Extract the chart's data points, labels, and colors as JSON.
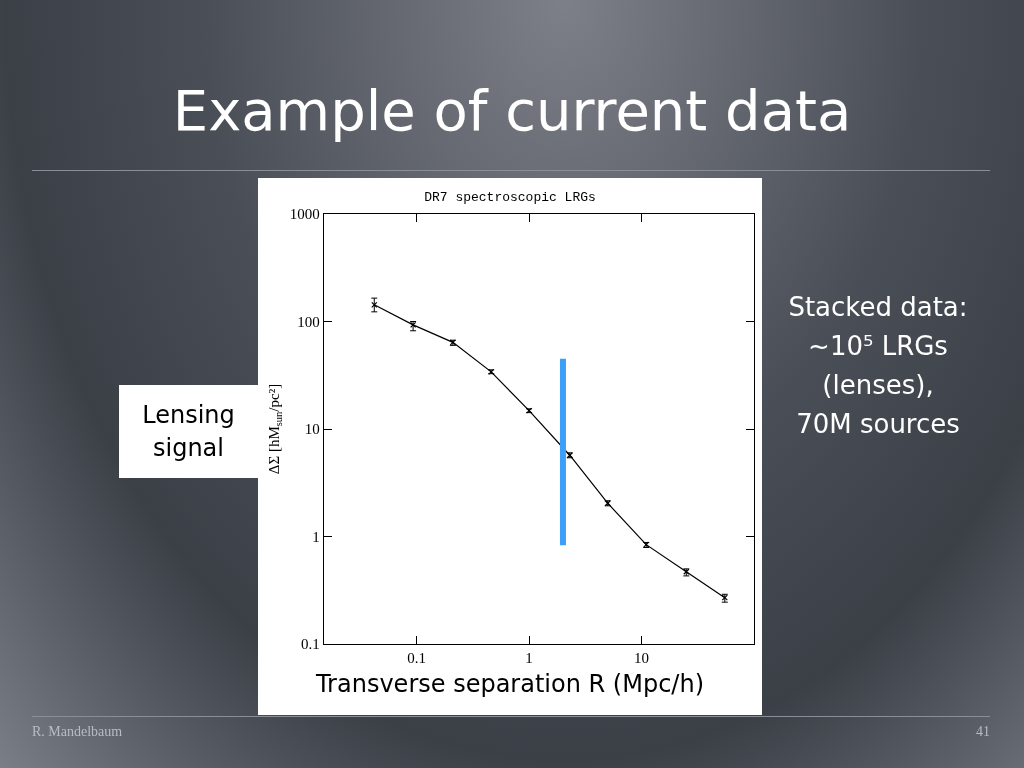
{
  "chart_data": {
    "type": "line",
    "title": "Example of current data",
    "subtitle": "DR7 spectroscopic LRGs",
    "xlabel": "Transverse separation R (Mpc/h)",
    "ylabel": "ΔΣ [hM$_{sun}$/pc²]",
    "x": [
      0.042,
      0.093,
      0.21,
      0.46,
      1.0,
      2.3,
      5.0,
      11,
      25,
      55
    ],
    "series": [
      {
        "color": "#000000",
        "values": [
          143,
          93,
          64,
          34,
          14.8,
          5.7,
          2.04,
          0.84,
          0.47,
          0.27
        ],
        "errors": [
          [
            123,
            165
          ],
          [
            82,
            100
          ],
          [
            60,
            67
          ],
          [
            32.7,
            35.5
          ],
          [
            14.2,
            15.4
          ],
          [
            5.4,
            6.0
          ],
          [
            1.93,
            2.15
          ],
          [
            0.79,
            0.88
          ],
          [
            0.43,
            0.5
          ],
          [
            0.245,
            0.29
          ]
        ],
        "marker": "cross",
        "line_style": "solid"
      },
      {
        "color": "#3d9ff5",
        "x": [
          2,
          2
        ],
        "values": [
          45,
          0.83
        ],
        "marker": "none",
        "line_style": "solid"
      }
    ],
    "log": "xy",
    "xlim": [
      0.015,
      100
    ],
    "xticks": [
      0.1,
      1,
      10
    ],
    "ylim": [
      0.1,
      1000
    ],
    "yticks": [
      0.1,
      1,
      10,
      100,
      1000
    ],
    "grid": false,
    "annotations": [
      "Lensing signal",
      "Stacked data: ~10⁵ LRGs (lenses), 70M sources",
      "R. Mandelbaum",
      "41"
    ]
  }
}
